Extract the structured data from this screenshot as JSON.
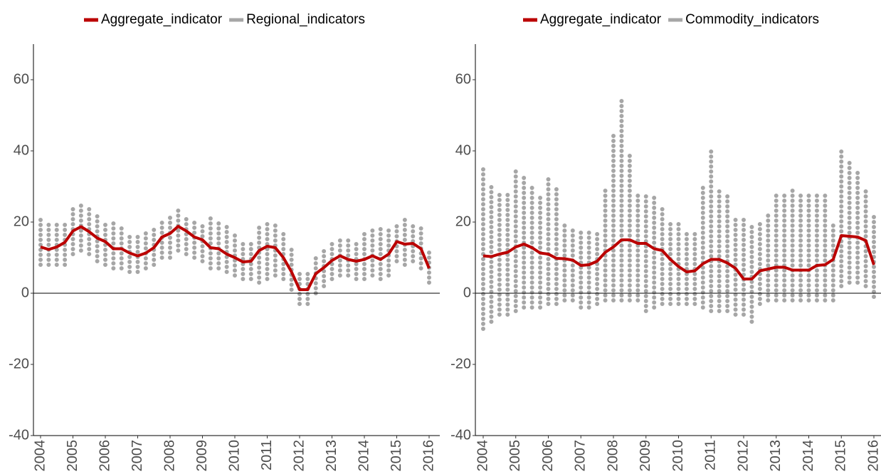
{
  "chart_data": [
    {
      "type": "line",
      "categories": [
        "2004",
        null,
        null,
        null,
        "2005",
        null,
        null,
        null,
        "2006",
        null,
        null,
        null,
        "2007",
        null,
        null,
        null,
        "2008",
        null,
        null,
        null,
        "2009",
        null,
        null,
        null,
        "2010",
        null,
        null,
        null,
        "2011",
        null,
        null,
        null,
        "2012",
        null,
        null,
        null,
        "2013",
        null,
        null,
        null,
        "2014",
        null,
        null,
        null,
        "2015",
        null,
        null,
        null,
        "2016"
      ],
      "ylim": [
        -40,
        70
      ],
      "yticks": [
        -40,
        -20,
        0,
        20,
        40,
        60
      ],
      "reference_line": 0,
      "legend": "top",
      "series": [
        {
          "name": "Aggregate_indicator",
          "color": "#bb0000",
          "values": [
            13,
            12.3,
            13,
            14.3,
            17.5,
            18.7,
            17.3,
            15.5,
            14.5,
            12.5,
            12.5,
            11.3,
            10.5,
            11.3,
            12.8,
            15.8,
            16.8,
            18.8,
            17.5,
            15.8,
            15,
            12.8,
            12.5,
            11,
            10,
            8.8,
            9,
            12,
            13.2,
            12.8,
            10,
            6,
            1,
            1,
            5.5,
            7.2,
            9.2,
            10.5,
            9.5,
            9,
            9.5,
            10.5,
            9.5,
            11,
            14.5,
            13.8,
            14,
            12.5,
            7
          ]
        },
        {
          "name": "Regional_indicators",
          "color": "#a6a6a6",
          "min": [
            8,
            8,
            8,
            8,
            11,
            12,
            11,
            9,
            8,
            7,
            7,
            6,
            6,
            7,
            8,
            10,
            10,
            12,
            11,
            10,
            9,
            7,
            7,
            6,
            5,
            4,
            4,
            3,
            4,
            5,
            4,
            1,
            -3,
            -3,
            0,
            2,
            4,
            5,
            5,
            4,
            4,
            5,
            4,
            5,
            9,
            8,
            9,
            7,
            3
          ],
          "max": [
            22,
            20,
            20,
            20,
            24,
            25,
            24,
            22,
            20,
            20,
            19,
            17,
            16,
            17,
            18,
            21,
            22,
            24,
            22,
            21,
            20,
            22,
            21,
            19,
            17,
            15,
            15,
            19,
            20,
            20,
            17,
            13,
            6,
            6,
            10,
            13,
            15,
            16,
            15,
            15,
            18,
            18,
            19,
            19,
            20,
            21,
            20,
            19,
            12
          ]
        }
      ]
    },
    {
      "type": "line",
      "categories": [
        "2004",
        null,
        null,
        null,
        "2005",
        null,
        null,
        null,
        "2006",
        null,
        null,
        null,
        "2007",
        null,
        null,
        null,
        "2008",
        null,
        null,
        null,
        "2009",
        null,
        null,
        null,
        "2010",
        null,
        null,
        null,
        "2011",
        null,
        null,
        null,
        "2012",
        null,
        null,
        null,
        "2013",
        null,
        null,
        null,
        "2014",
        null,
        null,
        null,
        "2015",
        null,
        null,
        null,
        "2016"
      ],
      "ylim": [
        -40,
        70
      ],
      "yticks": [
        -40,
        -20,
        0,
        20,
        40,
        60
      ],
      "reference_line": 0,
      "legend": "top",
      "series": [
        {
          "name": "Aggregate_indicator",
          "color": "#bb0000",
          "values": [
            10.5,
            10.3,
            11,
            11.5,
            13,
            13.8,
            12.8,
            11.3,
            11,
            9.8,
            9.7,
            9.3,
            7.8,
            8,
            9,
            11.5,
            13,
            15,
            15,
            14,
            14,
            12.5,
            12,
            9.5,
            7.5,
            6,
            6.3,
            8.3,
            9.5,
            9.5,
            8.5,
            7,
            4,
            4,
            6.3,
            6.8,
            7.3,
            7.3,
            6.5,
            6.5,
            6.5,
            7.8,
            8,
            9.5,
            16.2,
            16,
            15.8,
            14.8,
            8
          ]
        },
        {
          "name": "Commodity_indicators",
          "color": "#a6a6a6",
          "min": [
            -10,
            -8,
            -6,
            -6,
            -5,
            -4,
            -4,
            -4,
            -3,
            -3,
            -2,
            -2,
            -4,
            -4,
            -3,
            -2,
            -2,
            -2,
            -2,
            -2,
            -5,
            -4,
            -3,
            -3,
            -3,
            -3,
            -3,
            -4,
            -5,
            -5,
            -5,
            -6,
            -6,
            -8,
            -3,
            -2,
            -2,
            -2,
            -2,
            -2,
            -2,
            -2,
            -2,
            -2,
            2,
            3,
            3,
            2,
            -1
          ],
          "max": [
            36,
            30,
            28,
            28,
            35,
            33,
            30,
            28,
            33,
            30,
            20,
            18,
            18,
            18,
            18,
            30,
            45,
            55,
            40,
            28,
            28,
            28,
            25,
            20,
            20,
            18,
            18,
            30,
            40,
            30,
            28,
            22,
            22,
            20,
            20,
            22,
            28,
            28,
            30,
            28,
            28,
            28,
            28,
            20,
            40,
            38,
            35,
            30,
            22
          ]
        }
      ]
    }
  ]
}
